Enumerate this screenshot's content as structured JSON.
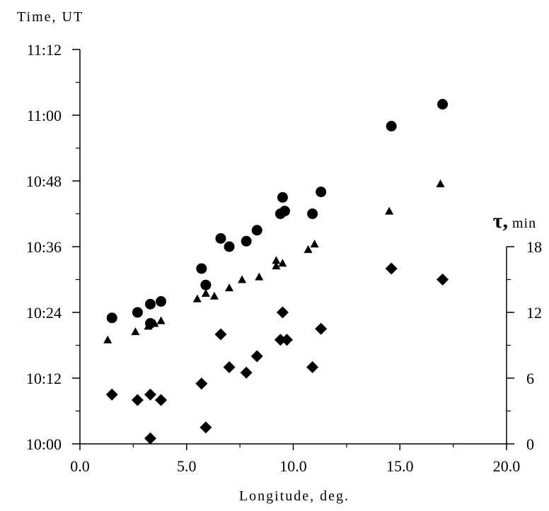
{
  "chart_data": {
    "type": "scatter",
    "title": "",
    "xlabel": "Longitude, deg.",
    "ylabel_left": "Time, UT",
    "ylabel_right_symbol": "τ,",
    "ylabel_right_unit": "min",
    "xlim": [
      0,
      20
    ],
    "ylim_left_minutes_after_10_00": [
      0,
      72
    ],
    "ylim_right": [
      0,
      18
    ],
    "x_tick_labels": [
      "0.0",
      "5.0",
      "10.0",
      "15.0",
      "20.0"
    ],
    "y_left_tick_labels": [
      "10:00",
      "10:12",
      "10:24",
      "10:36",
      "10:48",
      "11:00",
      "11:12"
    ],
    "y_right_tick_labels": [
      "0",
      "6",
      "12",
      "18"
    ],
    "grid": false,
    "legend": "none",
    "series": [
      {
        "marker": "circle",
        "axis": "left",
        "points": [
          {
            "x": 1.5,
            "y": "10:23"
          },
          {
            "x": 2.7,
            "y": "10:24"
          },
          {
            "x": 3.3,
            "y": "10:25.5"
          },
          {
            "x": 3.3,
            "y": "10:22"
          },
          {
            "x": 3.8,
            "y": "10:26"
          },
          {
            "x": 5.7,
            "y": "10:32"
          },
          {
            "x": 5.9,
            "y": "10:29"
          },
          {
            "x": 6.6,
            "y": "10:37.5"
          },
          {
            "x": 7.0,
            "y": "10:36"
          },
          {
            "x": 7.8,
            "y": "10:37"
          },
          {
            "x": 8.3,
            "y": "10:39"
          },
          {
            "x": 9.4,
            "y": "10:42"
          },
          {
            "x": 9.5,
            "y": "10:45"
          },
          {
            "x": 9.6,
            "y": "10:42.5"
          },
          {
            "x": 10.9,
            "y": "10:42"
          },
          {
            "x": 11.3,
            "y": "10:46"
          },
          {
            "x": 14.6,
            "y": "10:58"
          },
          {
            "x": 17.0,
            "y": "11:02"
          }
        ]
      },
      {
        "marker": "triangle",
        "axis": "left",
        "points": [
          {
            "x": 1.3,
            "y": "10:19"
          },
          {
            "x": 2.6,
            "y": "10:20.5"
          },
          {
            "x": 3.2,
            "y": "10:21.5"
          },
          {
            "x": 3.5,
            "y": "10:22"
          },
          {
            "x": 3.8,
            "y": "10:22.5"
          },
          {
            "x": 5.5,
            "y": "10:26.5"
          },
          {
            "x": 5.9,
            "y": "10:27.5"
          },
          {
            "x": 6.3,
            "y": "10:27"
          },
          {
            "x": 7.0,
            "y": "10:28.5"
          },
          {
            "x": 7.6,
            "y": "10:30"
          },
          {
            "x": 8.4,
            "y": "10:30.5"
          },
          {
            "x": 9.2,
            "y": "10:32.5"
          },
          {
            "x": 9.2,
            "y": "10:33.5"
          },
          {
            "x": 9.5,
            "y": "10:33"
          },
          {
            "x": 10.7,
            "y": "10:35.5"
          },
          {
            "x": 11.0,
            "y": "10:36.5"
          },
          {
            "x": 14.5,
            "y": "10:42.5"
          },
          {
            "x": 16.9,
            "y": "10:47.5"
          }
        ]
      },
      {
        "marker": "diamond",
        "axis": "right",
        "points": [
          {
            "x": 1.5,
            "y": 4.5
          },
          {
            "x": 2.7,
            "y": 4
          },
          {
            "x": 3.3,
            "y": 4.5
          },
          {
            "x": 3.3,
            "y": 0.5
          },
          {
            "x": 3.8,
            "y": 4
          },
          {
            "x": 5.7,
            "y": 5.5
          },
          {
            "x": 5.9,
            "y": 1.5
          },
          {
            "x": 6.6,
            "y": 10
          },
          {
            "x": 7.0,
            "y": 7
          },
          {
            "x": 7.8,
            "y": 6.5
          },
          {
            "x": 8.3,
            "y": 8
          },
          {
            "x": 9.4,
            "y": 9.5
          },
          {
            "x": 9.5,
            "y": 12
          },
          {
            "x": 9.7,
            "y": 9.5
          },
          {
            "x": 10.9,
            "y": 7
          },
          {
            "x": 11.3,
            "y": 10.5
          },
          {
            "x": 14.6,
            "y": 16
          },
          {
            "x": 17.0,
            "y": 15
          }
        ]
      }
    ]
  }
}
